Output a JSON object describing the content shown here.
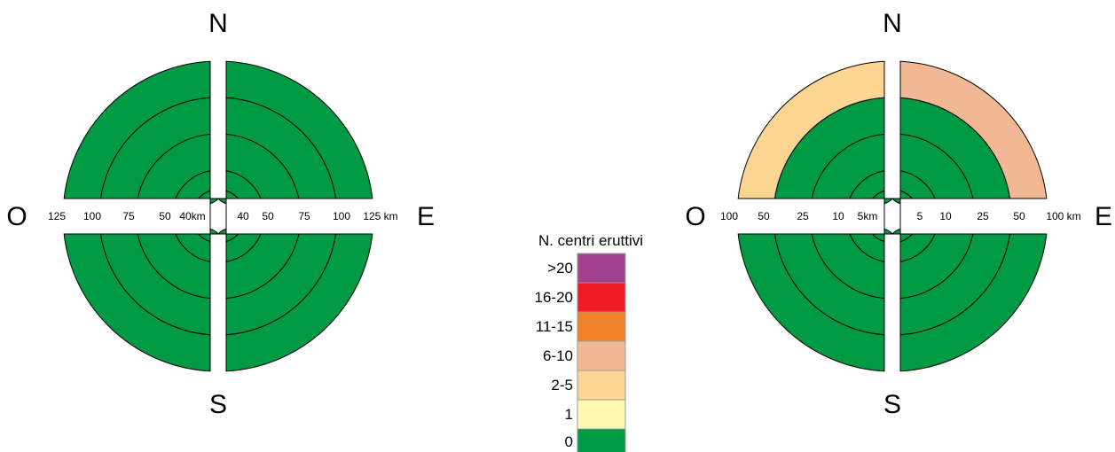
{
  "colors": {
    "0": "#009a45",
    "1": "#fff8b0",
    "2-5": "#fcd592",
    "6-10": "#f2b894",
    "11-15": "#f08128",
    "16-20": "#ed1c24",
    ">20": "#a2418f"
  },
  "legend": {
    "title": "N. centri eruttivi",
    "items": [
      {
        "label": ">20",
        "color": "#a2418f"
      },
      {
        "label": "16-20",
        "color": "#ed1c24"
      },
      {
        "label": "11-15",
        "color": "#f08128"
      },
      {
        "label": "6-10",
        "color": "#f2b894"
      },
      {
        "label": "2-5",
        "color": "#fcd592"
      },
      {
        "label": "1",
        "color": "#fff8b0"
      },
      {
        "label": "0",
        "color": "#009a45"
      }
    ]
  },
  "diagrams": [
    {
      "compass": {
        "north": "N",
        "south": "S",
        "east": "E",
        "west": "O"
      },
      "west_ticks": [
        "125",
        "100",
        "75",
        "50",
        "40km"
      ],
      "east_ticks": [
        "40",
        "50",
        "75",
        "100",
        "125 km"
      ],
      "rings_km": [
        125,
        100,
        75,
        50,
        40
      ],
      "sectors": {
        "NW": [
          "0",
          "0",
          "0",
          "0",
          "0"
        ],
        "NE": [
          "0",
          "0",
          "0",
          "0",
          "0"
        ],
        "SW": [
          "0",
          "0",
          "0",
          "0",
          "0"
        ],
        "SE": [
          "0",
          "0",
          "0",
          "0",
          "0"
        ]
      }
    },
    {
      "compass": {
        "north": "N",
        "south": "S",
        "east": "E",
        "west": "O"
      },
      "west_ticks": [
        "100",
        "50",
        "25",
        "10",
        "5km"
      ],
      "east_ticks": [
        "5",
        "10",
        "25",
        "50",
        "100 km"
      ],
      "rings_km": [
        100,
        50,
        25,
        10,
        5
      ],
      "sectors": {
        "NW": [
          "2-5",
          "0",
          "0",
          "0",
          "0"
        ],
        "NE": [
          "6-10",
          "0",
          "0",
          "0",
          "0"
        ],
        "SW": [
          "0",
          "0",
          "0",
          "0",
          "0"
        ],
        "SE": [
          "0",
          "0",
          "0",
          "0",
          "0"
        ]
      }
    }
  ]
}
